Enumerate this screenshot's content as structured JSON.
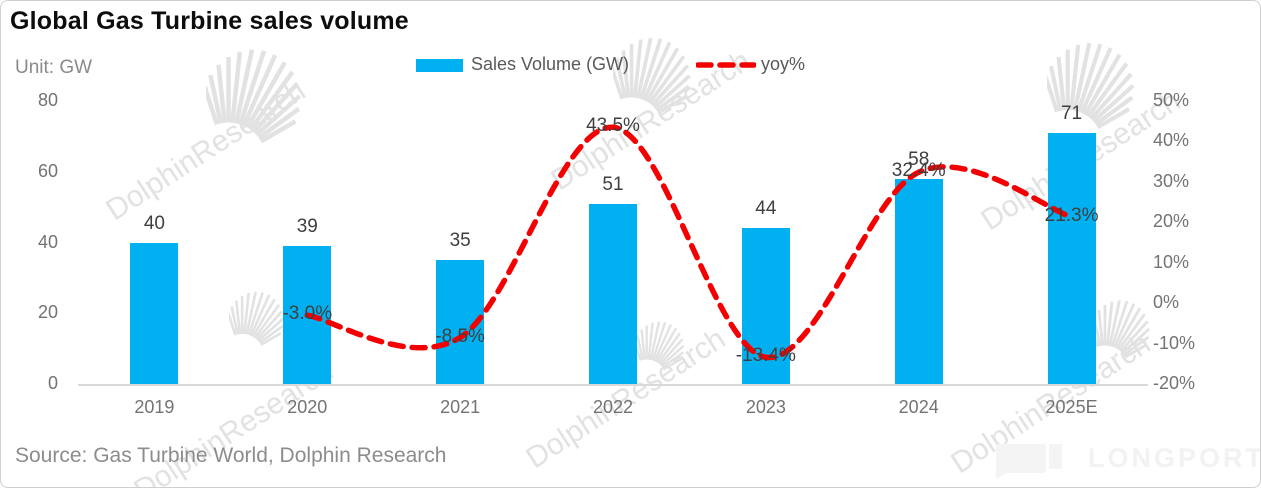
{
  "header": {
    "title": "Global Gas Turbine sales volume",
    "unit": "Unit: GW"
  },
  "legend": [
    {
      "label": "Sales Volume (GW)",
      "type": "bar"
    },
    {
      "label": "yoy%",
      "type": "line"
    }
  ],
  "source": "Source: Gas Turbine World, Dolphin Research",
  "watermark": {
    "text": "DolphinResearch"
  },
  "longport": {
    "text": "LONGPORT"
  },
  "colors": {
    "bar": "#00b0f0",
    "line": "#f40000",
    "axis_text": "#737373",
    "data_label_text": "#3f3f3f",
    "axis_line": "#d9d9d9",
    "watermark": "#e2e2e2"
  },
  "chart_data": {
    "type": "bar",
    "title": "Global Gas Turbine sales volume",
    "categories": [
      "2019",
      "2020",
      "2021",
      "2022",
      "2023",
      "2024",
      "2025E"
    ],
    "series": [
      {
        "name": "Sales Volume (GW)",
        "type": "bar",
        "axis": "left",
        "values": [
          40,
          39,
          35,
          51,
          44,
          58,
          71
        ],
        "labels": [
          "40",
          "39",
          "35",
          "51",
          "44",
          "58",
          "71"
        ]
      },
      {
        "name": "yoy%",
        "type": "line",
        "style": "dashed",
        "axis": "right",
        "values": [
          null,
          -3.0,
          -8.5,
          43.5,
          -13.4,
          32.4,
          21.3
        ],
        "labels": [
          null,
          "-3.0%",
          "-8.5%",
          "43.5%",
          "-13.4%",
          "32.4%",
          "21.3%"
        ]
      }
    ],
    "left_axis": {
      "label": "Unit: GW",
      "ticks": [
        0,
        20,
        40,
        60,
        80
      ],
      "range": [
        0,
        80
      ]
    },
    "right_axis": {
      "format": "percent",
      "ticks": [
        -20,
        -10,
        0,
        10,
        20,
        30,
        40,
        50
      ],
      "range": [
        -20,
        50
      ]
    },
    "grid": false,
    "legend_position": "top"
  }
}
